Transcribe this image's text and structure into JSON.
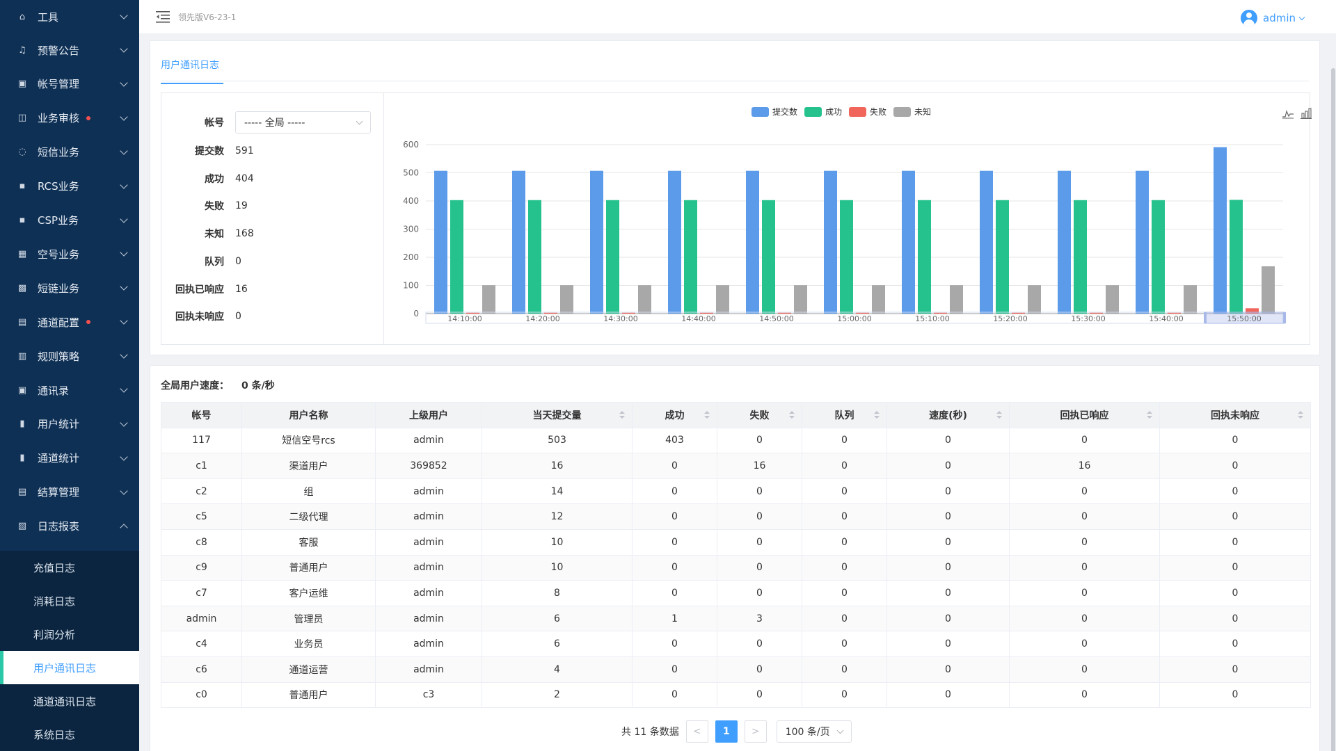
{
  "header": {
    "version": "领先版V6-23-1",
    "username": "admin"
  },
  "sidebar": {
    "items": [
      {
        "label": "工具",
        "icon": "home-icon",
        "dot": false
      },
      {
        "label": "预警公告",
        "icon": "bell-icon",
        "dot": false
      },
      {
        "label": "帐号管理",
        "icon": "account-icon",
        "dot": false
      },
      {
        "label": "业务审核",
        "icon": "audit-icon",
        "dot": true
      },
      {
        "label": "短信业务",
        "icon": "chat-icon",
        "dot": false
      },
      {
        "label": "RCS业务",
        "icon": "rcs-icon",
        "dot": false
      },
      {
        "label": "CSP业务",
        "icon": "csp-icon",
        "dot": false
      },
      {
        "label": "空号业务",
        "icon": "phone-icon",
        "dot": false
      },
      {
        "label": "短链业务",
        "icon": "link-icon",
        "dot": false
      },
      {
        "label": "通道配置",
        "icon": "channel-icon",
        "dot": true
      },
      {
        "label": "规则策略",
        "icon": "rule-icon",
        "dot": false
      },
      {
        "label": "通讯录",
        "icon": "contacts-icon",
        "dot": false
      },
      {
        "label": "用户统计",
        "icon": "user-stats-icon",
        "dot": false
      },
      {
        "label": "通道统计",
        "icon": "channel-stats-icon",
        "dot": false
      },
      {
        "label": "结算管理",
        "icon": "settlement-icon",
        "dot": false
      },
      {
        "label": "日志报表",
        "icon": "log-report-icon",
        "dot": false
      }
    ],
    "sub_items": [
      {
        "label": "充值日志",
        "active": false
      },
      {
        "label": "消耗日志",
        "active": false
      },
      {
        "label": "利润分析",
        "active": false
      },
      {
        "label": "用户通讯日志",
        "active": true
      },
      {
        "label": "通道通讯日志",
        "active": false
      },
      {
        "label": "系统日志",
        "active": false
      }
    ]
  },
  "tab": {
    "label": "用户通讯日志"
  },
  "summary": {
    "account_label": "帐号",
    "account_select": "----- 全局 -----",
    "rows": [
      {
        "label": "提交数",
        "value": "591"
      },
      {
        "label": "成功",
        "value": "404"
      },
      {
        "label": "失败",
        "value": "19"
      },
      {
        "label": "未知",
        "value": "168"
      },
      {
        "label": "队列",
        "value": "0"
      },
      {
        "label": "回执已响应",
        "value": "16"
      },
      {
        "label": "回执未响应",
        "value": "0"
      }
    ]
  },
  "chart_data": {
    "type": "bar",
    "categories": [
      "14:10:00",
      "14:20:00",
      "14:30:00",
      "14:40:00",
      "14:50:00",
      "15:00:00",
      "15:10:00",
      "15:20:00",
      "15:30:00",
      "15:40:00",
      "15:50:00"
    ],
    "series": [
      {
        "name": "提交数",
        "color": "#5b9bea",
        "values": [
          507,
          507,
          507,
          507,
          507,
          507,
          507,
          507,
          507,
          507,
          591
        ]
      },
      {
        "name": "成功",
        "color": "#26c28d",
        "values": [
          403,
          403,
          403,
          403,
          403,
          403,
          403,
          403,
          403,
          403,
          404
        ]
      },
      {
        "name": "失败",
        "color": "#f0665a",
        "values": [
          3,
          3,
          3,
          3,
          3,
          3,
          3,
          3,
          3,
          3,
          19
        ]
      },
      {
        "name": "未知",
        "color": "#a8a8a8",
        "values": [
          101,
          101,
          101,
          101,
          101,
          101,
          101,
          101,
          101,
          101,
          168
        ]
      }
    ],
    "yticks": [
      0,
      100,
      200,
      300,
      400,
      500,
      600
    ],
    "ylim": [
      0,
      600
    ],
    "legend": "top-center",
    "grid": true
  },
  "speed": {
    "label": "全局用户速度：",
    "value": "0 条/秒"
  },
  "table": {
    "headers": [
      "帐号",
      "用户名称",
      "上级用户",
      "当天提交量",
      "成功",
      "失败",
      "队列",
      "速度(秒)",
      "回执已响应",
      "回执未响应"
    ],
    "rows": [
      [
        "117",
        "短信空号rcs",
        "admin",
        "503",
        "403",
        "0",
        "0",
        "0",
        "0",
        "0"
      ],
      [
        "c1",
        "渠道用户",
        "369852",
        "16",
        "0",
        "16",
        "0",
        "0",
        "16",
        "0"
      ],
      [
        "c2",
        "组",
        "admin",
        "14",
        "0",
        "0",
        "0",
        "0",
        "0",
        "0"
      ],
      [
        "c5",
        "二级代理",
        "admin",
        "12",
        "0",
        "0",
        "0",
        "0",
        "0",
        "0"
      ],
      [
        "c8",
        "客服",
        "admin",
        "10",
        "0",
        "0",
        "0",
        "0",
        "0",
        "0"
      ],
      [
        "c9",
        "普通用户",
        "admin",
        "10",
        "0",
        "0",
        "0",
        "0",
        "0",
        "0"
      ],
      [
        "c7",
        "客户运维",
        "admin",
        "8",
        "0",
        "0",
        "0",
        "0",
        "0",
        "0"
      ],
      [
        "admin",
        "管理员",
        "admin",
        "6",
        "1",
        "3",
        "0",
        "0",
        "0",
        "0"
      ],
      [
        "c4",
        "业务员",
        "admin",
        "6",
        "0",
        "0",
        "0",
        "0",
        "0",
        "0"
      ],
      [
        "c6",
        "通道运营",
        "admin",
        "4",
        "0",
        "0",
        "0",
        "0",
        "0",
        "0"
      ],
      [
        "c0",
        "普通用户",
        "c3",
        "2",
        "0",
        "0",
        "0",
        "0",
        "0",
        "0"
      ]
    ]
  },
  "pager": {
    "total_text": "共 11 条数据",
    "prev": "<",
    "current": "1",
    "next": ">",
    "page_size": "100 条/页"
  }
}
